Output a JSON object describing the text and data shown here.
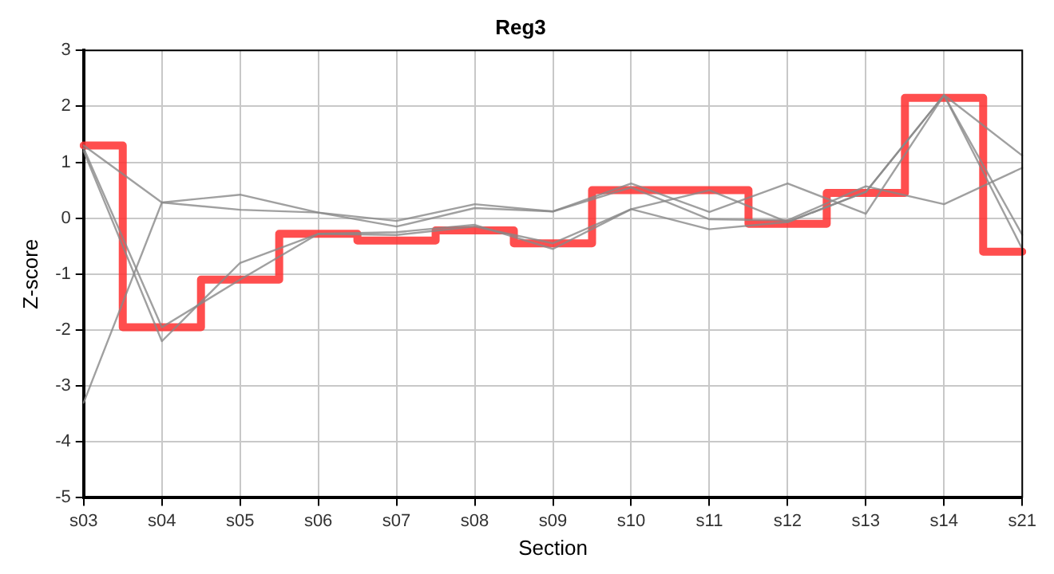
{
  "chart_data": {
    "type": "line",
    "title": "Reg3",
    "xlabel": "Section",
    "ylabel": "Z-score",
    "categories": [
      "s03",
      "s04",
      "s05",
      "s06",
      "s07",
      "s08",
      "s09",
      "s10",
      "s11",
      "s12",
      "s13",
      "s14",
      "s21"
    ],
    "ylim": [
      -5,
      3
    ],
    "yticks": [
      -5,
      -4,
      -3,
      -2,
      -1,
      0,
      1,
      2,
      3
    ],
    "grid": true,
    "legend": false,
    "series": [
      {
        "color": "#888888",
        "values": [
          -3.3,
          0.28,
          0.42,
          0.1,
          -0.05,
          0.25,
          0.12,
          0.62,
          0.11,
          0.62,
          0.08,
          2.2,
          1.12
        ]
      },
      {
        "color": "#888888",
        "values": [
          1.3,
          0.28,
          0.15,
          0.1,
          -0.15,
          0.18,
          0.12,
          0.55,
          -0.02,
          -0.04,
          0.57,
          0.25,
          0.9
        ]
      },
      {
        "color": "#888888",
        "values": [
          1.2,
          -2.2,
          -0.8,
          -0.28,
          -0.25,
          -0.12,
          -0.55,
          0.16,
          -0.2,
          -0.07,
          0.47,
          2.2,
          -0.3
        ]
      },
      {
        "color": "#888888",
        "values": [
          1.25,
          -1.95,
          -1.1,
          -0.28,
          -0.3,
          -0.15,
          -0.45,
          0.16,
          0.5,
          -0.07,
          0.47,
          2.2,
          -0.55
        ]
      },
      {
        "type": "step",
        "color": "#ff3333",
        "values": [
          1.3,
          -1.95,
          -1.1,
          -0.28,
          -0.4,
          -0.22,
          -0.45,
          0.5,
          0.5,
          -0.1,
          0.45,
          2.15,
          -0.6
        ]
      }
    ]
  }
}
